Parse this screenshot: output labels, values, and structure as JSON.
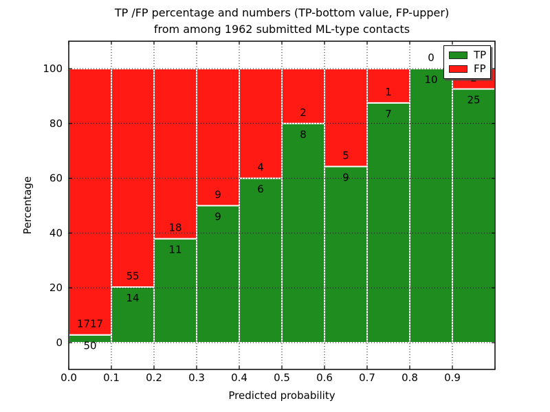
{
  "figure": {
    "title_line1": "TP /FP percentage and numbers (TP-bottom value, FP-upper)",
    "title_line2": "from among 1962 submitted ML-type contacts",
    "xlabel": "Predicted probability",
    "ylabel": "Percentage"
  },
  "legend": {
    "position": "upper right",
    "items": [
      {
        "label": "TP",
        "color": "#1e8c1e"
      },
      {
        "label": "FP",
        "color": "#ff1a14"
      }
    ]
  },
  "chart_data": {
    "type": "bar",
    "stacked": true,
    "normalized_to_percent": true,
    "title": "TP /FP percentage and numbers (TP-bottom value, FP-upper)\nfrom among 1962 submitted ML-type contacts",
    "xlabel": "Predicted probability",
    "ylabel": "Percentage",
    "total_contacts": 1962,
    "categories": [
      "0.0-0.1",
      "0.1-0.2",
      "0.2-0.3",
      "0.3-0.4",
      "0.4-0.5",
      "0.5-0.6",
      "0.6-0.7",
      "0.7-0.8",
      "0.8-0.9",
      "0.9-1.0"
    ],
    "x_tick_labels": [
      "0.0",
      "0.1",
      "0.2",
      "0.3",
      "0.4",
      "0.5",
      "0.6",
      "0.7",
      "0.8",
      "0.9"
    ],
    "y_ticks": [
      0,
      20,
      40,
      60,
      80,
      100
    ],
    "xlim": [
      0.0,
      1.0
    ],
    "ylim": [
      -9.8,
      110
    ],
    "grid": true,
    "grid_style": "dotted",
    "bar_edge_color": "#ffffff",
    "legend_position": "upper right",
    "series": [
      {
        "name": "TP",
        "color": "#1e8c1e",
        "counts": [
          50,
          14,
          11,
          9,
          6,
          8,
          9,
          7,
          10,
          25
        ]
      },
      {
        "name": "FP",
        "color": "#ff1a14",
        "counts": [
          1717,
          55,
          18,
          9,
          4,
          2,
          5,
          1,
          0,
          2
        ]
      }
    ],
    "tp_percent": [
      2.83,
      20.29,
      37.93,
      50.0,
      60.0,
      80.0,
      64.29,
      87.5,
      100.0,
      92.59
    ]
  }
}
